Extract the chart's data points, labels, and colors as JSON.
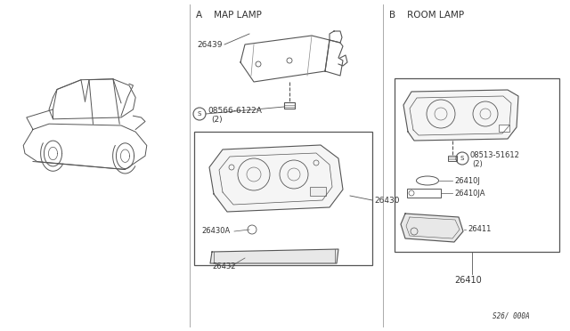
{
  "bg_color": "#ffffff",
  "fig_width": 6.4,
  "fig_height": 3.72,
  "line_color": "#555555",
  "text_color": "#333333",
  "light_fill": "#f0f0f0",
  "section_a_label": "A    MAP LAMP",
  "section_b_label": "B    ROOM LAMP",
  "footer_label": "S26/ 000A"
}
